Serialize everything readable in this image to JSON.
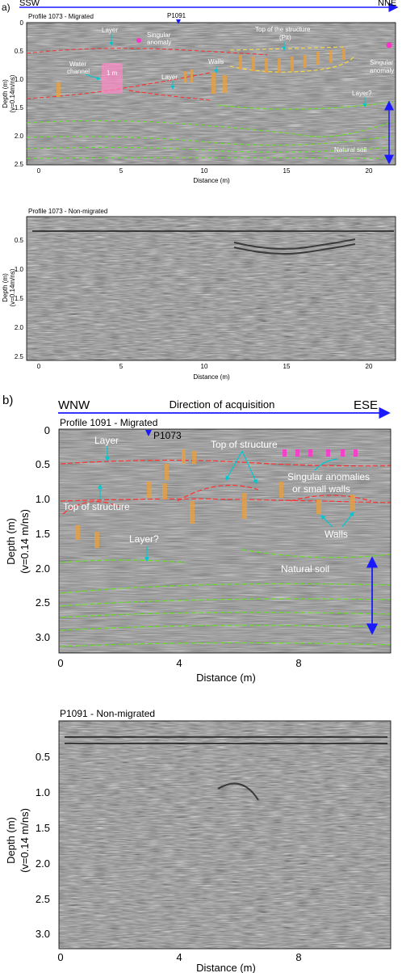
{
  "panel_a": {
    "letter": "a)",
    "dir_left": "SSW",
    "dir_right": "NNE",
    "cross_marker": "P1091",
    "migrated": {
      "title": "Profile 1073 - Migrated",
      "x_ticks": [
        "0",
        "5",
        "10",
        "15",
        "20"
      ],
      "y_ticks": [
        "0",
        "0.5",
        "1.0",
        "1.5",
        "2.0",
        "2.5"
      ],
      "xlabel": "Distance (m)",
      "ylabel_1": "Depth (m)",
      "ylabel_2": "(v=0.14m/ns)",
      "annotations": {
        "layer_top": "Layer",
        "singular_1": "Singular",
        "singular_2": "anomaly",
        "top_pit_1": "Top of the structure",
        "top_pit_2": "(Pit)",
        "water_1": "Water",
        "water_2": "channel",
        "one_m": "1 m",
        "layer_mid": "Layer",
        "walls": "Walls",
        "right_singular_1": "Singular",
        "right_singular_2": "anomaly",
        "layer_q": "Layer?",
        "natural_soil": "Natural soil"
      }
    },
    "non_migrated": {
      "title": "Profile 1073 - Non-migrated",
      "x_ticks": [
        "0",
        "5",
        "10",
        "15",
        "20"
      ],
      "y_ticks": [
        "0.5",
        "1.0",
        "1.5",
        "2.0",
        "2.5"
      ],
      "xlabel": "Distance (m)",
      "ylabel_1": "Depth (m)",
      "ylabel_2": "(v=0.14m/ns)"
    }
  },
  "panel_b": {
    "letter": "b)",
    "dir_left": "WNW",
    "dir_mid": "Direction of acquisition",
    "dir_right": "ESE",
    "cross_marker": "P1073",
    "migrated": {
      "title": "Profile 1091 - Migrated",
      "x_ticks": [
        "0",
        "4",
        "8"
      ],
      "y_ticks": [
        "0",
        "0.5",
        "1.0",
        "1.5",
        "2.0",
        "2.5",
        "3.0"
      ],
      "xlabel": "Distance (m)",
      "ylabel_1": "Depth (m)",
      "ylabel_2": "(v=0.14 m/ns)",
      "annotations": {
        "layer": "Layer",
        "top_structure_right": "Top of structure",
        "singular_1": "Singular  anomalies",
        "singular_2": "or small walls",
        "top_structure_left": "Top of structure",
        "walls": "Walls",
        "layer_q": "Layer?",
        "natural_soil": "Natural soil"
      }
    },
    "non_migrated": {
      "title": "P1091 - Non-migrated",
      "x_ticks": [
        "0",
        "4",
        "8"
      ],
      "y_ticks": [
        "0.5",
        "1.0",
        "1.5",
        "2.0",
        "2.5",
        "3.0"
      ],
      "xlabel": "Distance (m)",
      "ylabel_1": "Depth (m)",
      "ylabel_2": "(v=0.14 m/ns)"
    }
  },
  "colors": {
    "arrow": "#1a1aff",
    "annotation_text": "#ffffff",
    "leader": "#00c8d0",
    "red_line": "#ff3030",
    "green_line": "#66dd22",
    "yellow_line": "#ffdd33",
    "wall_box": "#e8a040",
    "magenta": "#ff33cc",
    "water_box": "#ff8ac8"
  }
}
